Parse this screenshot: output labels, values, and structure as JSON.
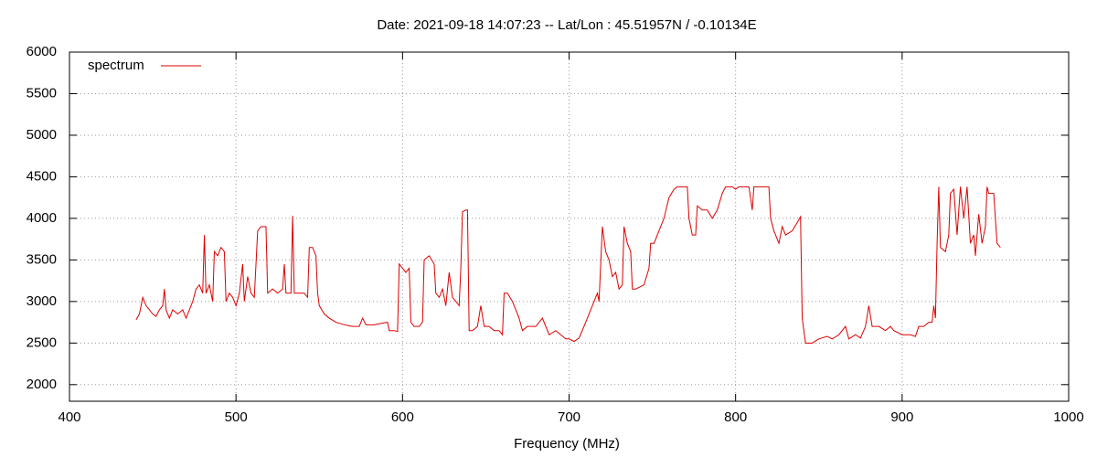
{
  "chart_data": {
    "type": "line",
    "title": "Date: 2021-09-18 14:07:23  --  Lat/Lon : 45.51957N / -0.10134E",
    "x_label": "Frequency (MHz)",
    "xlim": [
      400,
      1000
    ],
    "xticks": [
      400,
      500,
      600,
      700,
      800,
      900,
      1000
    ],
    "ylim": [
      1800,
      6000
    ],
    "yticks": [
      2000,
      2500,
      3000,
      3500,
      4000,
      4500,
      5000,
      5500,
      6000
    ],
    "grid": true,
    "legend": "top-left",
    "x": [
      440,
      442,
      444,
      446,
      448,
      450,
      452,
      454,
      456,
      457,
      458,
      460,
      462,
      465,
      468,
      470,
      472,
      474,
      476,
      478,
      480,
      481,
      482,
      484,
      486,
      487,
      489,
      491,
      493,
      494,
      496,
      498,
      500,
      502,
      504,
      505,
      507,
      509,
      511,
      513,
      515,
      518,
      519,
      522,
      525,
      528,
      529,
      530,
      533,
      534,
      535,
      538,
      541,
      543,
      544,
      546,
      548,
      549,
      550,
      553,
      556,
      560,
      565,
      570,
      574,
      576,
      578,
      583,
      588,
      591,
      592,
      595,
      597,
      598,
      600,
      602,
      604,
      605,
      607,
      610,
      612,
      613,
      616,
      619,
      620,
      622,
      624,
      626,
      628,
      630,
      632,
      634,
      635,
      636,
      638,
      639,
      640,
      642,
      645,
      647,
      649,
      652,
      655,
      658,
      660,
      661,
      663,
      666,
      670,
      672,
      675,
      680,
      684,
      688,
      692,
      695,
      698,
      700,
      703,
      706,
      710,
      714,
      717,
      718,
      720,
      722,
      724,
      726,
      728,
      730,
      732,
      733,
      735,
      737,
      738,
      740,
      745,
      748,
      749,
      751,
      754,
      757,
      760,
      763,
      765,
      768,
      771,
      772,
      774,
      776,
      777,
      780,
      783,
      786,
      789,
      792,
      794,
      798,
      800,
      802,
      805,
      808,
      810,
      811,
      815,
      820,
      821,
      823,
      826,
      828,
      830,
      834,
      837,
      839,
      840,
      842,
      846,
      850,
      855,
      858,
      862,
      866,
      868,
      872,
      875,
      878,
      880,
      882,
      886,
      890,
      893,
      895,
      898,
      900,
      902,
      905,
      908,
      910,
      913,
      916,
      918,
      919,
      920,
      921,
      922,
      923,
      926,
      928,
      929,
      931,
      933,
      935,
      937,
      939,
      941,
      943,
      944,
      946,
      948,
      950,
      951,
      952,
      955,
      957,
      959
    ],
    "series": [
      {
        "name": "spectrum",
        "color": "#dd0000",
        "values": [
          2780,
          2850,
          3050,
          2950,
          2900,
          2850,
          2820,
          2900,
          2950,
          3150,
          2900,
          2800,
          2900,
          2850,
          2900,
          2800,
          2900,
          3000,
          3150,
          3200,
          3100,
          3800,
          3100,
          3200,
          3000,
          3600,
          3550,
          3650,
          3600,
          3000,
          3100,
          3050,
          2950,
          3100,
          3450,
          3000,
          3300,
          3100,
          3050,
          3850,
          3900,
          3900,
          3100,
          3150,
          3100,
          3150,
          3450,
          3100,
          3100,
          4030,
          3100,
          3100,
          3100,
          3050,
          3650,
          3650,
          3550,
          3100,
          2950,
          2850,
          2800,
          2750,
          2720,
          2700,
          2700,
          2800,
          2720,
          2720,
          2740,
          2750,
          2650,
          2650,
          2640,
          3450,
          3400,
          3350,
          3400,
          2750,
          2700,
          2700,
          2750,
          3500,
          3550,
          3450,
          3100,
          3050,
          3150,
          2950,
          3350,
          3050,
          3000,
          2950,
          3400,
          4080,
          4100,
          4100,
          2650,
          2650,
          2700,
          2950,
          2700,
          2700,
          2650,
          2650,
          2600,
          3100,
          3100,
          3000,
          2800,
          2650,
          2700,
          2700,
          2800,
          2600,
          2650,
          2600,
          2550,
          2550,
          2520,
          2560,
          2750,
          2950,
          3100,
          3000,
          3900,
          3600,
          3500,
          3300,
          3350,
          3150,
          3200,
          3900,
          3700,
          3600,
          3150,
          3150,
          3200,
          3400,
          3700,
          3700,
          3850,
          4000,
          4250,
          4350,
          4380,
          4380,
          4380,
          4000,
          3800,
          3800,
          4150,
          4100,
          4100,
          4000,
          4100,
          4300,
          4380,
          4380,
          4350,
          4380,
          4380,
          4380,
          4100,
          4380,
          4380,
          4380,
          4000,
          3850,
          3700,
          3900,
          3800,
          3850,
          3950,
          4020,
          2800,
          2500,
          2500,
          2550,
          2580,
          2550,
          2600,
          2700,
          2550,
          2600,
          2560,
          2700,
          2950,
          2700,
          2700,
          2650,
          2700,
          2650,
          2620,
          2600,
          2600,
          2600,
          2580,
          2700,
          2700,
          2750,
          2750,
          2950,
          2800,
          3700,
          4380,
          3650,
          3600,
          3800,
          4300,
          4350,
          3800,
          4380,
          4000,
          4380,
          3700,
          3800,
          3550,
          4050,
          3700,
          3900,
          4380,
          4300,
          4300,
          3700,
          3650
        ]
      }
    ]
  }
}
